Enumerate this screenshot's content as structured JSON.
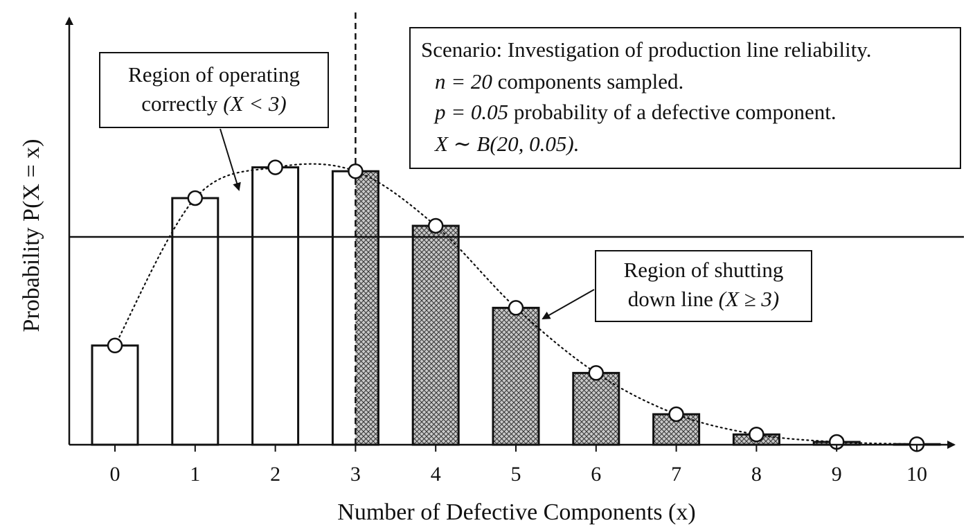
{
  "chart_data": {
    "type": "bar",
    "categories": [
      "0",
      "1",
      "2",
      "3",
      "4",
      "5",
      "6",
      "7",
      "8",
      "9",
      "10"
    ],
    "x": [
      0,
      1,
      2,
      3,
      4,
      5,
      6,
      7,
      8,
      9,
      10
    ],
    "values": [
      0.0358,
      0.089,
      0.1001,
      0.0987,
      0.079,
      0.0494,
      0.0259,
      0.011,
      0.0037,
      0.001,
      0.0002
    ],
    "xlabel": "Number of Defective Components (x)",
    "ylabel": "Probability P(X = x)",
    "xlim": [
      -0.6,
      10.6
    ],
    "ylim": [
      0,
      0.12
    ],
    "threshold_x": 3,
    "reference_line_y": 0.075,
    "grid": false,
    "legend": "none",
    "colors": {
      "bar_fill_correct": "#ffffff",
      "bar_fill_shutdown": "#b8b8b8",
      "stroke": "#111111"
    },
    "annotations": {
      "operating": {
        "line1": "Region of operating",
        "line2_prefix": "correctly ",
        "line2_math": "(X < 3)"
      },
      "shutdown": {
        "line1": "Region of shutting",
        "line2_prefix": "down line ",
        "line2_math": "(X ≥ 3)"
      },
      "scenario": {
        "line1": "Scenario: Investigation of production line reliability.",
        "line2_math": "n = 20",
        "line2_rest": " components sampled.",
        "line3_math": "p = 0.05",
        "line3_rest": " probability of a defective component.",
        "line4_math": "X ∼ B(20, 0.05)."
      }
    }
  }
}
